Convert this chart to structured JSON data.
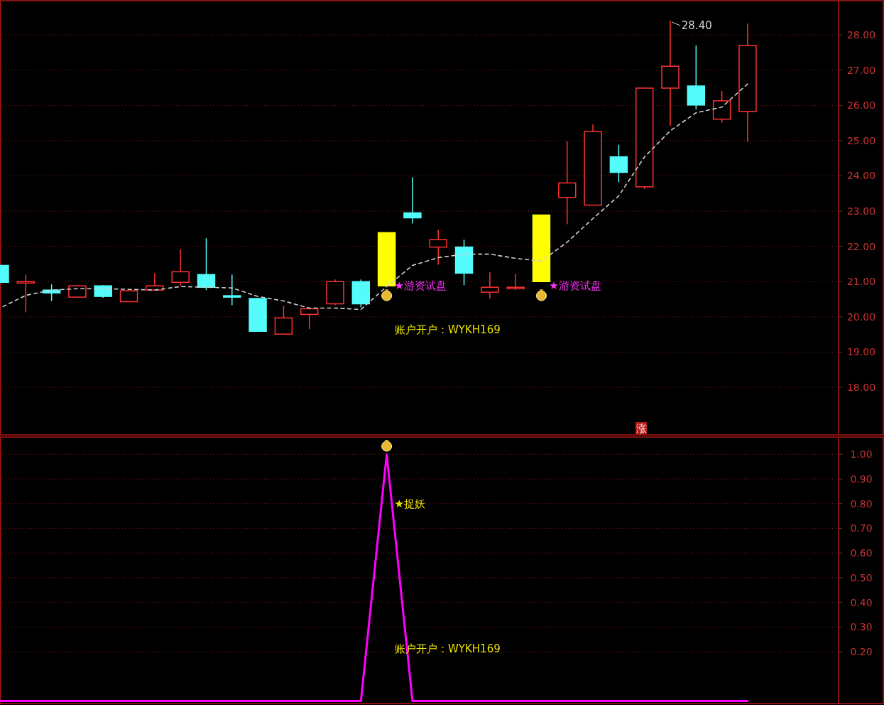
{
  "chart_data": [
    {
      "type": "candlestick",
      "categories": [
        null,
        null,
        null,
        null,
        null,
        null,
        null,
        null,
        null,
        null,
        null,
        null,
        null,
        null,
        null,
        null,
        null,
        null,
        null,
        null,
        null,
        null,
        null,
        null,
        null,
        null,
        null,
        null,
        null,
        null
      ],
      "ohlc": [
        [
          21.46,
          21.46,
          20.98,
          20.98
        ],
        [
          20.96,
          21.2,
          20.13,
          21.0
        ],
        [
          20.76,
          20.92,
          20.45,
          20.68
        ],
        [
          20.56,
          20.9,
          20.56,
          20.88
        ],
        [
          20.88,
          20.9,
          20.54,
          20.58
        ],
        [
          20.43,
          20.74,
          20.43,
          20.74
        ],
        [
          20.76,
          21.24,
          20.76,
          20.88
        ],
        [
          20.98,
          21.92,
          20.88,
          21.28
        ],
        [
          21.2,
          22.23,
          20.76,
          20.84
        ],
        [
          20.6,
          21.2,
          20.33,
          20.56
        ],
        [
          20.52,
          20.54,
          19.59,
          19.59
        ],
        [
          19.51,
          20.31,
          19.51,
          19.97
        ],
        [
          20.07,
          20.25,
          19.65,
          20.23
        ],
        [
          20.37,
          21.06,
          20.33,
          21.0
        ],
        [
          21.0,
          21.06,
          20.27,
          20.37
        ],
        [
          20.88,
          22.39,
          20.88,
          22.39
        ],
        [
          22.95,
          23.96,
          22.65,
          22.81
        ],
        [
          21.98,
          22.47,
          21.48,
          22.19
        ],
        [
          21.98,
          22.19,
          20.9,
          21.24
        ],
        [
          20.7,
          21.26,
          20.52,
          20.84
        ],
        [
          20.82,
          21.22,
          20.76,
          20.84
        ],
        [
          21.0,
          22.89,
          21.0,
          22.89
        ],
        [
          23.39,
          24.98,
          22.63,
          23.8
        ],
        [
          23.17,
          25.46,
          23.17,
          25.26
        ],
        [
          24.54,
          24.88,
          23.82,
          24.1
        ],
        [
          23.69,
          26.49,
          23.63,
          26.49
        ],
        [
          26.49,
          28.4,
          25.42,
          27.11
        ],
        [
          26.55,
          27.7,
          25.89,
          26.01
        ],
        [
          25.61,
          26.41,
          25.51,
          26.13
        ],
        [
          25.83,
          28.32,
          24.96,
          27.7
        ]
      ],
      "colors": [
        "#54fcfc",
        "#ff3232",
        "#54fcfc",
        "#ff3232",
        "#54fcfc",
        "#ff3232",
        "#ff3232",
        "#ff3232",
        "#54fcfc",
        "#54fcfc",
        "#54fcfc",
        "#ff3232",
        "#ff3232",
        "#ff3232",
        "#54fcfc",
        "#ffff00",
        "#54fcfc",
        "#ff3232",
        "#54fcfc",
        "#ff3232",
        "#ff3232",
        "#ffff00",
        "#ff3232",
        "#ff3232",
        "#54fcfc",
        "#ff3232",
        "#ff3232",
        "#54fcfc",
        "#ff3232",
        "#ff3232"
      ],
      "series": [
        {
          "type": "line",
          "color": "#d0d0d0",
          "line_style": "dashed",
          "values": [
            20.25,
            20.61,
            20.76,
            20.8,
            20.8,
            20.78,
            20.76,
            20.86,
            20.84,
            20.82,
            20.58,
            20.45,
            20.25,
            20.25,
            20.21,
            20.86,
            21.46,
            21.68,
            21.78,
            21.78,
            21.66,
            21.58,
            22.12,
            22.79,
            23.43,
            24.54,
            25.28,
            25.79,
            25.95,
            26.61
          ]
        }
      ],
      "ylim": [
        16.65,
        28.97
      ],
      "yticks": [
        {
          "value": 18,
          "label": "18.00"
        },
        {
          "value": 19,
          "label": "19.00"
        },
        {
          "value": 20,
          "label": "20.00"
        },
        {
          "value": 21,
          "label": "21.00"
        },
        {
          "value": 22,
          "label": "22.00"
        },
        {
          "value": 23,
          "label": "23.00"
        },
        {
          "value": 24,
          "label": "24.00"
        },
        {
          "value": 25,
          "label": "25.00"
        },
        {
          "value": 26,
          "label": "26.00"
        },
        {
          "value": 27,
          "label": "27.00"
        },
        {
          "value": 28,
          "label": "28.00"
        }
      ],
      "grid": "y",
      "tick_labels": "y",
      "annotations": [
        "★游资试盘",
        "★游资试盘",
        "账户开户：WYKH169",
        "28.40",
        "涨"
      ]
    },
    {
      "type": "line",
      "categories": [
        null,
        null,
        null,
        null,
        null,
        null,
        null,
        null,
        null,
        null,
        null,
        null,
        null,
        null,
        null,
        null,
        null,
        null,
        null,
        null,
        null,
        null,
        null,
        null,
        null,
        null,
        null,
        null,
        null,
        null
      ],
      "series": [
        {
          "color": "#ff00ff",
          "values": [
            0,
            0,
            0,
            0,
            0,
            0,
            0,
            0,
            0,
            0,
            0,
            0,
            0,
            0,
            0,
            1,
            0,
            0,
            0,
            0,
            0,
            0,
            0,
            0,
            0,
            0,
            0,
            0,
            0,
            0
          ]
        }
      ],
      "ylim": [
        -0.01,
        1.07
      ],
      "yticks": [
        {
          "value": 0.2,
          "label": "0.20"
        },
        {
          "value": 0.3,
          "label": "0.30"
        },
        {
          "value": 0.4,
          "label": "0.40"
        },
        {
          "value": 0.5,
          "label": "0.50"
        },
        {
          "value": 0.6,
          "label": "0.60"
        },
        {
          "value": 0.7,
          "label": "0.70"
        },
        {
          "value": 0.8,
          "label": "0.80"
        },
        {
          "value": 0.9,
          "label": "0.90"
        },
        {
          "value": 1,
          "label": "1.00"
        }
      ],
      "grid": "y",
      "tick_labels": "y",
      "annotations": [
        "★捉妖",
        "账户开户：WYKH169"
      ]
    }
  ]
}
